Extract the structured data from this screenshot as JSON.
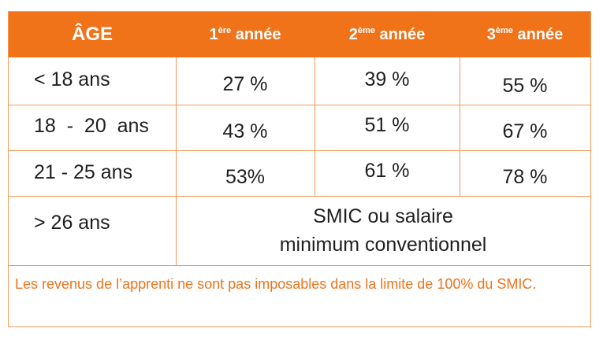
{
  "header": {
    "age": "ÂGE",
    "year1_num": "1",
    "year1_sup": "ère",
    "year2_num": "2",
    "year2_sup": "ème",
    "year3_num": "3",
    "year3_sup": "ème",
    "annee": "année"
  },
  "rows": [
    {
      "age": "< 18 ans",
      "y1": "27 %",
      "y2": "39 %",
      "y3": "55 %"
    },
    {
      "age": "18  -  20  ans",
      "y1": "43 %",
      "y2": "51 %",
      "y3": "67 %"
    },
    {
      "age": "21 - 25 ans",
      "y1": "53%",
      "y2": "61 %",
      "y3": "78 %"
    },
    {
      "age": "> 26 ans"
    }
  ],
  "smic_line1": "SMIC ou salaire",
  "smic_line2": "minimum conventionnel",
  "note": "Les revenus de l’apprenti ne sont pas imposables dans la limite de 100% du SMIC.",
  "colors": {
    "accent": "#f0731a",
    "border": "#f29a5a",
    "text": "#1f1f1f"
  }
}
